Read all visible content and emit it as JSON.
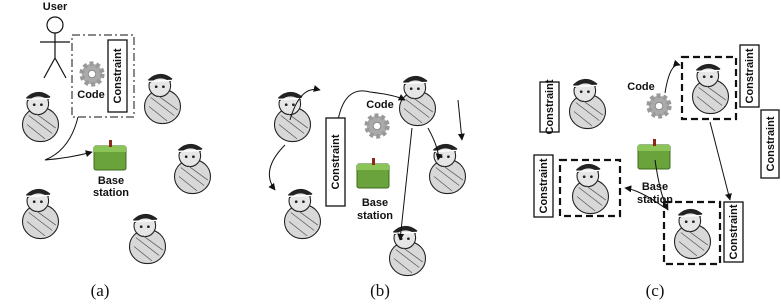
{
  "panels": [
    {
      "caption": "(a)",
      "user": "User",
      "code": "Code",
      "constraints": [
        "Constraint"
      ],
      "base_station": [
        "Base",
        "station"
      ]
    },
    {
      "caption": "(b)",
      "code": "Code",
      "constraints": [
        "Constraint"
      ],
      "base_station": [
        "Base",
        "station"
      ]
    },
    {
      "caption": "(c)",
      "code": "Code",
      "constraints": [
        "Constraint",
        "Constraint",
        "Constraint",
        "Constraint",
        "Constraint"
      ],
      "base_station": [
        "Base",
        "station"
      ]
    }
  ]
}
